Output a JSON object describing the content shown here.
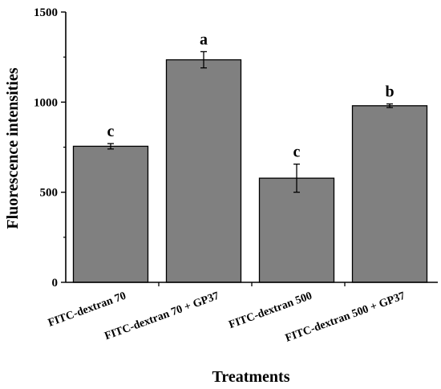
{
  "chart_data": {
    "type": "bar",
    "xlabel": "Treatments",
    "ylabel": "Fluorescence intensities",
    "ylim": [
      0,
      1500
    ],
    "yticks": [
      0,
      500,
      1000,
      1500
    ],
    "grid": false,
    "categories": [
      "FITC-dextran 70",
      "FITC-dextran 70 + GP37",
      "FITC-dextran 500",
      "FITC-dextran 500 + GP37"
    ],
    "values": [
      755,
      1235,
      578,
      980
    ],
    "errors": [
      15,
      45,
      78,
      10
    ],
    "significance_letters": [
      "c",
      "a",
      "c",
      "b"
    ],
    "bar_color": "#808080",
    "edge_color": "#000000"
  }
}
